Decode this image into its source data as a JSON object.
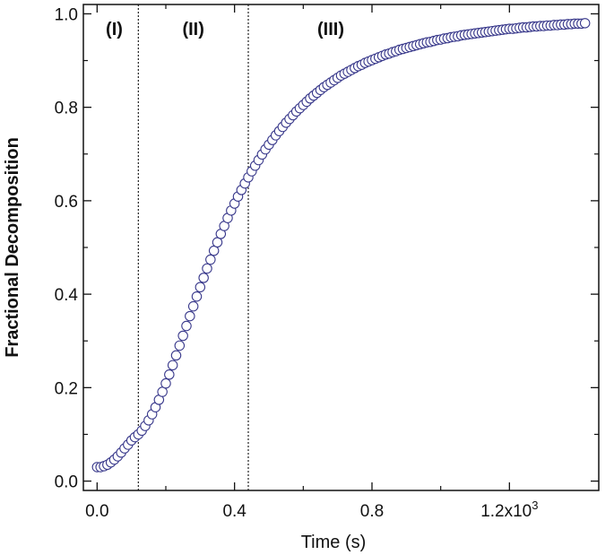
{
  "chart_data": {
    "type": "scatter",
    "xlabel": "Time (s)",
    "ylabel": "Fractional Decomposition",
    "xlim": [
      -0.04,
      1.46
    ],
    "ylim": [
      -0.02,
      1.02
    ],
    "x_ticks": [
      {
        "value": 0.0,
        "label": "0.0"
      },
      {
        "value": 0.4,
        "label": "0.4"
      },
      {
        "value": 0.8,
        "label": "0.8"
      },
      {
        "value": 1.2,
        "label": "1.2x10",
        "sup": "3"
      }
    ],
    "x_minor_ticks": [
      0.2,
      0.6,
      1.0
    ],
    "y_ticks": [
      {
        "value": 0.0,
        "label": "0.0"
      },
      {
        "value": 0.2,
        "label": "0.2"
      },
      {
        "value": 0.4,
        "label": "0.4"
      },
      {
        "value": 0.6,
        "label": "0.6"
      },
      {
        "value": 0.8,
        "label": "0.8"
      },
      {
        "value": 1.0,
        "label": "1.0"
      }
    ],
    "y_minor_ticks": [
      0.1,
      0.3,
      0.5,
      0.7,
      0.9
    ],
    "region_boundaries": [
      0.12,
      0.44
    ],
    "regions": [
      {
        "label": "(I)",
        "x": 0.05,
        "y": 0.955
      },
      {
        "label": "(II)",
        "x": 0.28,
        "y": 0.955
      },
      {
        "label": "(III)",
        "x": 0.68,
        "y": 0.955
      }
    ],
    "marker_color": "#3a3a8c",
    "series": [
      {
        "x": [
          0.0,
          0.01,
          0.02,
          0.03,
          0.04,
          0.05,
          0.06,
          0.07,
          0.08,
          0.09,
          0.1,
          0.11,
          0.12,
          0.13,
          0.14,
          0.15,
          0.16,
          0.17,
          0.18,
          0.19,
          0.2,
          0.21,
          0.22,
          0.23,
          0.24,
          0.25,
          0.26,
          0.27,
          0.28,
          0.29,
          0.3,
          0.31,
          0.32,
          0.33,
          0.34,
          0.35,
          0.36,
          0.37,
          0.38,
          0.39,
          0.4,
          0.41,
          0.42,
          0.43,
          0.44,
          0.45,
          0.46,
          0.47,
          0.48,
          0.49,
          0.5,
          0.51,
          0.52,
          0.53,
          0.54,
          0.55,
          0.56,
          0.57,
          0.58,
          0.59,
          0.6,
          0.61,
          0.62,
          0.63,
          0.64,
          0.65,
          0.66,
          0.67,
          0.68,
          0.69,
          0.7,
          0.71,
          0.72,
          0.73,
          0.74,
          0.75,
          0.76,
          0.77,
          0.78,
          0.79,
          0.8,
          0.81,
          0.82,
          0.83,
          0.84,
          0.85,
          0.86,
          0.87,
          0.88,
          0.89,
          0.9,
          0.91,
          0.92,
          0.93,
          0.94,
          0.95,
          0.96,
          0.97,
          0.98,
          0.99,
          1.0,
          1.01,
          1.02,
          1.03,
          1.04,
          1.05,
          1.06,
          1.07,
          1.08,
          1.09,
          1.1,
          1.11,
          1.12,
          1.13,
          1.14,
          1.15,
          1.16,
          1.17,
          1.18,
          1.19,
          1.2,
          1.21,
          1.22,
          1.23,
          1.24,
          1.25,
          1.26,
          1.27,
          1.28,
          1.29,
          1.3,
          1.31,
          1.32,
          1.33,
          1.34,
          1.35,
          1.36,
          1.37,
          1.38,
          1.39,
          1.4,
          1.41,
          1.42
        ],
        "values": [
          0.03,
          0.03,
          0.032,
          0.035,
          0.04,
          0.046,
          0.053,
          0.061,
          0.07,
          0.078,
          0.087,
          0.094,
          0.1,
          0.108,
          0.118,
          0.13,
          0.143,
          0.158,
          0.174,
          0.191,
          0.209,
          0.228,
          0.248,
          0.269,
          0.29,
          0.311,
          0.332,
          0.353,
          0.374,
          0.395,
          0.415,
          0.435,
          0.455,
          0.474,
          0.493,
          0.511,
          0.529,
          0.546,
          0.563,
          0.579,
          0.594,
          0.609,
          0.623,
          0.637,
          0.65,
          0.663,
          0.675,
          0.687,
          0.699,
          0.71,
          0.72,
          0.73,
          0.74,
          0.749,
          0.758,
          0.767,
          0.775,
          0.783,
          0.791,
          0.798,
          0.805,
          0.812,
          0.819,
          0.825,
          0.831,
          0.837,
          0.843,
          0.848,
          0.853,
          0.858,
          0.863,
          0.868,
          0.872,
          0.876,
          0.88,
          0.884,
          0.888,
          0.891,
          0.895,
          0.898,
          0.901,
          0.904,
          0.907,
          0.91,
          0.913,
          0.915,
          0.918,
          0.92,
          0.923,
          0.925,
          0.927,
          0.929,
          0.931,
          0.933,
          0.935,
          0.937,
          0.939,
          0.94,
          0.942,
          0.944,
          0.945,
          0.947,
          0.948,
          0.95,
          0.951,
          0.952,
          0.954,
          0.955,
          0.956,
          0.957,
          0.958,
          0.959,
          0.96,
          0.961,
          0.962,
          0.963,
          0.964,
          0.965,
          0.966,
          0.967,
          0.968,
          0.968,
          0.969,
          0.97,
          0.971,
          0.971,
          0.972,
          0.973,
          0.973,
          0.974,
          0.974,
          0.975,
          0.975,
          0.976,
          0.976,
          0.977,
          0.977,
          0.978,
          0.978,
          0.979,
          0.979,
          0.979,
          0.98
        ]
      }
    ]
  }
}
